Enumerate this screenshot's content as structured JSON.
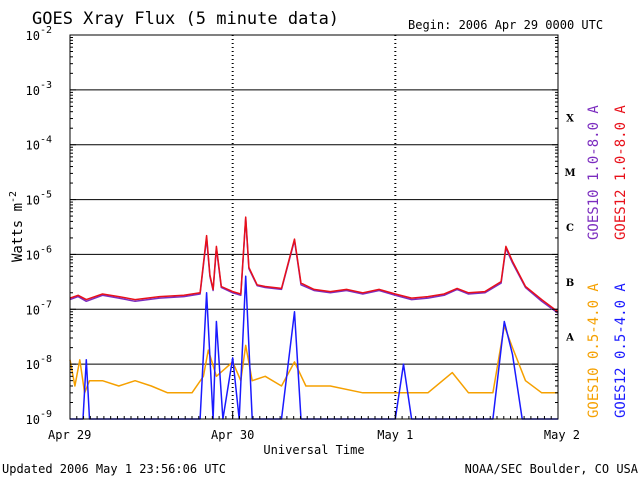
{
  "chart_data": {
    "type": "line",
    "title": "GOES Xray Flux (5 minute data)",
    "begin_label": "Begin:  2006 Apr 29 0000 UTC",
    "xlabel": "Universal Time",
    "ylabel_text": "Watts m",
    "ylabel_superscript": "-2",
    "y_scale": "log",
    "ylim": [
      1e-09,
      0.01
    ],
    "y_ticks": [
      {
        "value": 0.01,
        "base": "10",
        "exp": "-2"
      },
      {
        "value": 0.001,
        "base": "10",
        "exp": "-3"
      },
      {
        "value": 0.0001,
        "base": "10",
        "exp": "-4"
      },
      {
        "value": 1e-05,
        "base": "10",
        "exp": "-5"
      },
      {
        "value": 1e-06,
        "base": "10",
        "exp": "-6"
      },
      {
        "value": 1e-07,
        "base": "10",
        "exp": "-7"
      },
      {
        "value": 1e-08,
        "base": "10",
        "exp": "-8"
      },
      {
        "value": 1e-09,
        "base": "10",
        "exp": "-9"
      }
    ],
    "x_range_days": [
      0,
      3
    ],
    "x_ticks": [
      {
        "day": 0,
        "label": "Apr 29"
      },
      {
        "day": 1,
        "label": "Apr 30"
      },
      {
        "day": 2,
        "label": "May 1"
      },
      {
        "day": 3,
        "label": "May 2"
      }
    ],
    "flare_classes": [
      {
        "label": "X",
        "value": 0.000316
      },
      {
        "label": "M",
        "value": 3.16e-05
      },
      {
        "label": "C",
        "value": 3.16e-06
      },
      {
        "label": "B",
        "value": 3.16e-07
      },
      {
        "label": "A",
        "value": 3.16e-08
      }
    ],
    "grid": "horizontal at decades; vertical dashed at day boundaries",
    "legend_position": "right, vertical",
    "series": [
      {
        "name": "GOES10 1.0-8.0 A",
        "color": "#7b2cbf",
        "points": [
          [
            0,
            1.5e-07
          ],
          [
            0.05,
            1.7e-07
          ],
          [
            0.1,
            1.4e-07
          ],
          [
            0.2,
            1.8e-07
          ],
          [
            0.3,
            1.6e-07
          ],
          [
            0.4,
            1.4e-07
          ],
          [
            0.55,
            1.6e-07
          ],
          [
            0.7,
            1.7e-07
          ],
          [
            0.8,
            1.9e-07
          ],
          [
            0.84,
            2e-06
          ],
          [
            0.86,
            4e-07
          ],
          [
            0.88,
            2.2e-07
          ],
          [
            0.9,
            1.3e-06
          ],
          [
            0.93,
            2.5e-07
          ],
          [
            1.0,
            2e-07
          ],
          [
            1.05,
            1.8e-07
          ],
          [
            1.08,
            4.5e-06
          ],
          [
            1.1,
            5.5e-07
          ],
          [
            1.15,
            2.7e-07
          ],
          [
            1.2,
            2.5e-07
          ],
          [
            1.3,
            2.3e-07
          ],
          [
            1.38,
            1.8e-06
          ],
          [
            1.42,
            2.8e-07
          ],
          [
            1.5,
            2.2e-07
          ],
          [
            1.6,
            2e-07
          ],
          [
            1.7,
            2.2e-07
          ],
          [
            1.8,
            1.9e-07
          ],
          [
            1.9,
            2.2e-07
          ],
          [
            2.0,
            1.8e-07
          ],
          [
            2.1,
            1.5e-07
          ],
          [
            2.2,
            1.6e-07
          ],
          [
            2.3,
            1.8e-07
          ],
          [
            2.38,
            2.3e-07
          ],
          [
            2.45,
            1.9e-07
          ],
          [
            2.55,
            2e-07
          ],
          [
            2.65,
            3e-07
          ],
          [
            2.68,
            1.3e-06
          ],
          [
            2.72,
            7e-07
          ],
          [
            2.8,
            2.5e-07
          ],
          [
            2.9,
            1.4e-07
          ],
          [
            3.0,
            8.5e-08
          ]
        ]
      },
      {
        "name": "GOES12 1.0-8.0 A",
        "color": "#e8101a",
        "points": [
          [
            0,
            1.6e-07
          ],
          [
            0.05,
            1.8e-07
          ],
          [
            0.1,
            1.5e-07
          ],
          [
            0.2,
            1.9e-07
          ],
          [
            0.3,
            1.7e-07
          ],
          [
            0.4,
            1.5e-07
          ],
          [
            0.55,
            1.7e-07
          ],
          [
            0.7,
            1.8e-07
          ],
          [
            0.8,
            2e-07
          ],
          [
            0.84,
            2.2e-06
          ],
          [
            0.86,
            4.2e-07
          ],
          [
            0.88,
            2.3e-07
          ],
          [
            0.9,
            1.4e-06
          ],
          [
            0.93,
            2.6e-07
          ],
          [
            1.0,
            2.1e-07
          ],
          [
            1.05,
            1.9e-07
          ],
          [
            1.08,
            4.8e-06
          ],
          [
            1.1,
            5.8e-07
          ],
          [
            1.15,
            2.8e-07
          ],
          [
            1.2,
            2.6e-07
          ],
          [
            1.3,
            2.4e-07
          ],
          [
            1.38,
            1.9e-06
          ],
          [
            1.42,
            3e-07
          ],
          [
            1.5,
            2.3e-07
          ],
          [
            1.6,
            2.1e-07
          ],
          [
            1.7,
            2.3e-07
          ],
          [
            1.8,
            2e-07
          ],
          [
            1.9,
            2.3e-07
          ],
          [
            2.0,
            1.9e-07
          ],
          [
            2.1,
            1.6e-07
          ],
          [
            2.2,
            1.7e-07
          ],
          [
            2.3,
            1.9e-07
          ],
          [
            2.38,
            2.4e-07
          ],
          [
            2.45,
            2e-07
          ],
          [
            2.55,
            2.1e-07
          ],
          [
            2.65,
            3.2e-07
          ],
          [
            2.68,
            1.4e-06
          ],
          [
            2.72,
            7.5e-07
          ],
          [
            2.8,
            2.6e-07
          ],
          [
            2.9,
            1.5e-07
          ],
          [
            3.0,
            9e-08
          ]
        ]
      },
      {
        "name": "GOES10 0.5-4.0 A",
        "color": "#f5a000",
        "points": [
          [
            0,
            1.2e-08
          ],
          [
            0.03,
            4e-09
          ],
          [
            0.06,
            1.2e-08
          ],
          [
            0.09,
            3e-09
          ],
          [
            0.12,
            5e-09
          ],
          [
            0.2,
            5e-09
          ],
          [
            0.3,
            4e-09
          ],
          [
            0.4,
            5e-09
          ],
          [
            0.5,
            4e-09
          ],
          [
            0.6,
            3e-09
          ],
          [
            0.75,
            3e-09
          ],
          [
            0.82,
            6e-09
          ],
          [
            0.85,
            1.8e-08
          ],
          [
            0.9,
            6e-09
          ],
          [
            1.0,
            1.1e-08
          ],
          [
            1.05,
            5e-09
          ],
          [
            1.08,
            2.2e-08
          ],
          [
            1.12,
            5e-09
          ],
          [
            1.2,
            6e-09
          ],
          [
            1.3,
            4e-09
          ],
          [
            1.38,
            1.1e-08
          ],
          [
            1.45,
            4e-09
          ],
          [
            1.6,
            4e-09
          ],
          [
            1.8,
            3e-09
          ],
          [
            2.0,
            3e-09
          ],
          [
            2.2,
            3e-09
          ],
          [
            2.35,
            7e-09
          ],
          [
            2.45,
            3e-09
          ],
          [
            2.6,
            3e-09
          ],
          [
            2.67,
            5e-08
          ],
          [
            2.72,
            2e-08
          ],
          [
            2.8,
            5e-09
          ],
          [
            2.9,
            3e-09
          ],
          [
            3.0,
            3e-09
          ]
        ]
      },
      {
        "name": "GOES12 0.5-4.0 A",
        "color": "#1a1aff",
        "points": [
          [
            0,
            1e-09
          ],
          [
            0.08,
            1e-09
          ],
          [
            0.1,
            1.2e-08
          ],
          [
            0.12,
            1e-09
          ],
          [
            0.25,
            1e-09
          ],
          [
            0.4,
            1e-09
          ],
          [
            0.6,
            1e-09
          ],
          [
            0.8,
            1e-09
          ],
          [
            0.84,
            2e-07
          ],
          [
            0.88,
            1e-09
          ],
          [
            0.9,
            6e-08
          ],
          [
            0.94,
            1e-09
          ],
          [
            1.0,
            1.3e-08
          ],
          [
            1.04,
            1e-09
          ],
          [
            1.08,
            4e-07
          ],
          [
            1.12,
            1e-09
          ],
          [
            1.2,
            1e-09
          ],
          [
            1.3,
            1e-09
          ],
          [
            1.38,
            9e-08
          ],
          [
            1.42,
            1e-09
          ],
          [
            1.6,
            1e-09
          ],
          [
            1.8,
            1e-09
          ],
          [
            2.0,
            1e-09
          ],
          [
            2.05,
            1e-08
          ],
          [
            2.1,
            1e-09
          ],
          [
            2.3,
            1e-09
          ],
          [
            2.5,
            1e-09
          ],
          [
            2.6,
            1e-09
          ],
          [
            2.67,
            6e-08
          ],
          [
            2.72,
            1.5e-08
          ],
          [
            2.78,
            1e-09
          ],
          [
            2.9,
            1e-09
          ],
          [
            3.0,
            1e-09
          ]
        ]
      }
    ]
  },
  "footer": {
    "updated": "Updated 2006 May  1 23:56:06 UTC",
    "credit": "NOAA/SEC Boulder, CO USA"
  }
}
